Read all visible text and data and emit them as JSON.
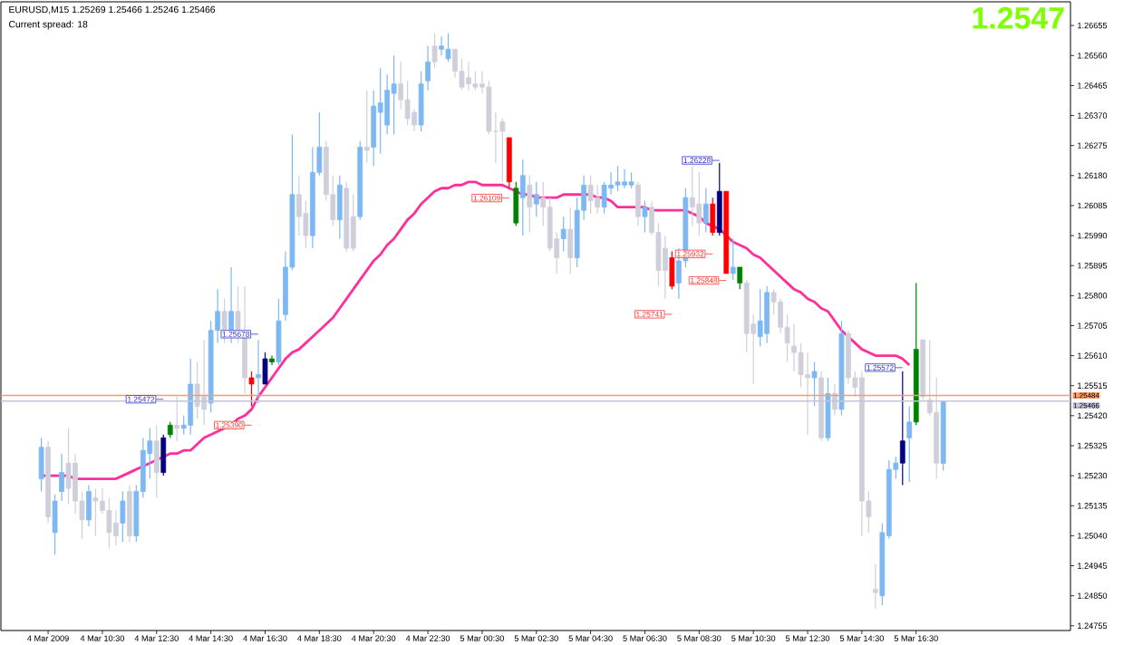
{
  "chart_data": {
    "type": "candlestick",
    "title": "EURUSD,M15 1.25269 1.25466 1.25246 1.25466",
    "subtitle": "Current spread: 18",
    "categories": [
      null,
      "4 Mar 2009",
      null,
      null,
      null,
      null,
      null,
      null,
      null,
      "4 Mar 10:30",
      null,
      null,
      null,
      null,
      null,
      null,
      null,
      "4 Mar 12:30",
      null,
      null,
      null,
      null,
      null,
      null,
      null,
      "4 Mar 14:30",
      null,
      null,
      null,
      null,
      null,
      null,
      null,
      "4 Mar 16:30",
      null,
      null,
      null,
      null,
      null,
      null,
      null,
      "4 Mar 18:30",
      null,
      null,
      null,
      null,
      null,
      null,
      null,
      "4 Mar 20:30",
      null,
      null,
      null,
      null,
      null,
      null,
      null,
      "4 Mar 22:30",
      null,
      null,
      null,
      null,
      null,
      null,
      null,
      "5 Mar 00:30",
      null,
      null,
      null,
      null,
      null,
      null,
      null,
      "5 Mar 02:30",
      null,
      null,
      null,
      null,
      null,
      null,
      null,
      "5 Mar 04:30",
      null,
      null,
      null,
      null,
      null,
      null,
      null,
      "5 Mar 06:30",
      null,
      null,
      null,
      null,
      null,
      null,
      null,
      "5 Mar 08:30",
      null,
      null,
      null,
      null,
      null,
      null,
      null,
      "5 Mar 10:30",
      null,
      null,
      null,
      null,
      null,
      null,
      null,
      "5 Mar 12:30",
      null,
      null,
      null,
      null,
      null,
      null,
      null,
      "5 Mar 14:30",
      null,
      null,
      null,
      null,
      null,
      null,
      null,
      "5 Mar 16:30",
      null,
      null,
      null,
      null
    ],
    "ohlc": [
      [
        1.2522,
        1.2535,
        1.2518,
        1.2532
      ],
      [
        1.2532,
        1.2534,
        1.2508,
        1.251
      ],
      [
        1.2505,
        1.2517,
        1.2498,
        1.2515
      ],
      [
        1.2518,
        1.253,
        1.2515,
        1.2524
      ],
      [
        1.2527,
        1.2538,
        1.2514,
        1.2519
      ],
      [
        1.2527,
        1.253,
        1.2511,
        1.2515
      ],
      [
        1.2515,
        1.2518,
        1.2503,
        1.2509
      ],
      [
        1.2509,
        1.252,
        1.2507,
        1.2518
      ],
      [
        1.2516,
        1.2519,
        1.2504,
        1.2515
      ],
      [
        1.2515,
        1.2519,
        1.2511,
        1.2512
      ],
      [
        1.2512,
        1.2516,
        1.25,
        1.2505
      ],
      [
        1.2508,
        1.2512,
        1.2501,
        1.2504
      ],
      [
        1.2508,
        1.2518,
        1.2502,
        1.2515
      ],
      [
        1.2518,
        1.252,
        1.2502,
        1.2504
      ],
      [
        1.2504,
        1.252,
        1.2502,
        1.2518
      ],
      [
        1.2518,
        1.2535,
        1.2516,
        1.2531
      ],
      [
        1.253,
        1.2538,
        1.2522,
        1.2534
      ],
      [
        1.2534,
        1.2539,
        1.2516,
        1.2524
      ],
      [
        1.2524,
        1.2536,
        1.2523,
        1.2535
      ],
      [
        1.2536,
        1.254,
        1.2535,
        1.2539
      ],
      [
        1.2539,
        1.2548,
        1.2534,
        1.2538
      ],
      [
        1.2538,
        1.2542,
        1.2536,
        1.2539
      ],
      [
        1.2539,
        1.256,
        1.2536,
        1.2552
      ],
      [
        1.2552,
        1.2559,
        1.2541,
        1.2545
      ],
      [
        1.2548,
        1.2566,
        1.2539,
        1.2544
      ],
      [
        1.2546,
        1.2572,
        1.2543,
        1.2569
      ],
      [
        1.2569,
        1.2582,
        1.2565,
        1.2575
      ],
      [
        1.2575,
        1.2579,
        1.2565,
        1.2569
      ],
      [
        1.2569,
        1.2589,
        1.2565,
        1.2575
      ],
      [
        1.2575,
        1.2583,
        1.2565,
        1.2569
      ],
      [
        1.2568,
        1.2583,
        1.2549,
        1.2554
      ],
      [
        1.2554,
        1.2556,
        1.2545,
        1.2552
      ],
      [
        1.2554,
        1.2566,
        1.2546,
        1.2555
      ],
      [
        1.2552,
        1.2562,
        1.2552,
        1.256
      ],
      [
        1.2559,
        1.2561,
        1.2558,
        1.256
      ],
      [
        1.2559,
        1.2579,
        1.2558,
        1.2572
      ],
      [
        1.2574,
        1.2594,
        1.2572,
        1.2589
      ],
      [
        1.2589,
        1.2631,
        1.2588,
        1.2612
      ],
      [
        1.2612,
        1.2618,
        1.2599,
        1.2605
      ],
      [
        1.2606,
        1.261,
        1.2595,
        1.2599
      ],
      [
        1.2599,
        1.2627,
        1.2595,
        1.2619
      ],
      [
        1.2619,
        1.2638,
        1.2618,
        1.2627
      ],
      [
        1.2627,
        1.2629,
        1.261,
        1.2612
      ],
      [
        1.2612,
        1.2618,
        1.2602,
        1.2604
      ],
      [
        1.2604,
        1.2618,
        1.2598,
        1.2615
      ],
      [
        1.2614,
        1.2616,
        1.2594,
        1.2595
      ],
      [
        1.2605,
        1.2612,
        1.2594,
        1.2595
      ],
      [
        1.2605,
        1.2629,
        1.2604,
        1.2627
      ],
      [
        1.2627,
        1.2645,
        1.2622,
        1.2626
      ],
      [
        1.2627,
        1.2645,
        1.2621,
        1.264
      ],
      [
        1.2638,
        1.2652,
        1.2625,
        1.2641
      ],
      [
        1.2634,
        1.265,
        1.2631,
        1.2645
      ],
      [
        1.2644,
        1.2656,
        1.2631,
        1.2647
      ],
      [
        1.2647,
        1.2654,
        1.2639,
        1.2642
      ],
      [
        1.2642,
        1.2648,
        1.2634,
        1.2636
      ],
      [
        1.2638,
        1.2639,
        1.2632,
        1.2634
      ],
      [
        1.2634,
        1.2651,
        1.2632,
        1.2647
      ],
      [
        1.2648,
        1.2659,
        1.2645,
        1.2654
      ],
      [
        1.2659,
        1.2663,
        1.2652,
        1.2654
      ],
      [
        1.2658,
        1.2662,
        1.2656,
        1.2659
      ],
      [
        1.2655,
        1.2663,
        1.2654,
        1.2658
      ],
      [
        1.2658,
        1.2658,
        1.2649,
        1.2651
      ],
      [
        1.2651,
        1.2655,
        1.2645,
        1.2646
      ],
      [
        1.2649,
        1.2654,
        1.2645,
        1.2647
      ],
      [
        1.2647,
        1.2651,
        1.2645,
        1.2646
      ],
      [
        1.2647,
        1.2651,
        1.2644,
        1.2646
      ],
      [
        1.2646,
        1.2648,
        1.2631,
        1.2632
      ],
      [
        1.2632,
        1.2638,
        1.2622,
        1.2632
      ],
      [
        1.2635,
        1.2636,
        1.2616,
        1.2632
      ],
      [
        1.263,
        1.263,
        1.2614,
        1.2616
      ],
      [
        1.2603,
        1.2616,
        1.2602,
        1.2614
      ],
      [
        1.2611,
        1.2623,
        1.2599,
        1.2618
      ],
      [
        1.2615,
        1.2618,
        1.26,
        1.2608
      ],
      [
        1.2609,
        1.2616,
        1.2605,
        1.2612
      ],
      [
        1.2611,
        1.2616,
        1.2602,
        1.2608
      ],
      [
        1.2608,
        1.2611,
        1.2594,
        1.2595
      ],
      [
        1.2598,
        1.26,
        1.2587,
        1.2592
      ],
      [
        1.2598,
        1.2605,
        1.2594,
        1.2601
      ],
      [
        1.2601,
        1.2608,
        1.2587,
        1.2592
      ],
      [
        1.2592,
        1.2611,
        1.2589,
        1.2607
      ],
      [
        1.2607,
        1.2618,
        1.2604,
        1.2615
      ],
      [
        1.2615,
        1.2618,
        1.2606,
        1.261
      ],
      [
        1.2611,
        1.2615,
        1.2606,
        1.2608
      ],
      [
        1.2608,
        1.2616,
        1.2606,
        1.2615
      ],
      [
        1.2614,
        1.2619,
        1.2612,
        1.2615
      ],
      [
        1.2615,
        1.2621,
        1.2613,
        1.2616
      ],
      [
        1.2615,
        1.262,
        1.2614,
        1.2616
      ],
      [
        1.2615,
        1.2619,
        1.2614,
        1.2616
      ],
      [
        1.2615,
        1.2616,
        1.2602,
        1.2605
      ],
      [
        1.2605,
        1.261,
        1.26,
        1.2608
      ],
      [
        1.2608,
        1.261,
        1.2599,
        1.26
      ],
      [
        1.26,
        1.2603,
        1.2583,
        1.2588
      ],
      [
        1.2595,
        1.2599,
        1.2579,
        1.2588
      ],
      [
        1.2592,
        1.2594,
        1.2582,
        1.2583
      ],
      [
        1.2584,
        1.2595,
        1.2579,
        1.2591
      ],
      [
        1.2591,
        1.2614,
        1.2589,
        1.2611
      ],
      [
        1.2611,
        1.2621,
        1.2602,
        1.2608
      ],
      [
        1.2609,
        1.2619,
        1.2599,
        1.2603
      ],
      [
        1.2603,
        1.2614,
        1.26,
        1.2609
      ],
      [
        1.2609,
        1.2611,
        1.2599,
        1.26
      ],
      [
        1.26,
        1.2622,
        1.2599,
        1.2613
      ],
      [
        1.2613,
        1.2613,
        1.2587,
        1.2587
      ],
      [
        1.2587,
        1.2598,
        1.2585,
        1.2589
      ],
      [
        1.2589,
        1.2589,
        1.2582,
        1.2584
      ],
      [
        1.2584,
        1.2585,
        1.2562,
        1.2568
      ],
      [
        1.2571,
        1.2574,
        1.2552,
        1.2568
      ],
      [
        1.2567,
        1.2582,
        1.2564,
        1.2572
      ],
      [
        1.2568,
        1.2583,
        1.2565,
        1.2581
      ],
      [
        1.2581,
        1.2582,
        1.2574,
        1.2578
      ],
      [
        1.2578,
        1.2579,
        1.2568,
        1.257
      ],
      [
        1.257,
        1.2574,
        1.2559,
        1.2565
      ],
      [
        1.2564,
        1.2571,
        1.2556,
        1.2562
      ],
      [
        1.2562,
        1.2565,
        1.2551,
        1.2555
      ],
      [
        1.2555,
        1.2562,
        1.2536,
        1.2554
      ],
      [
        1.2554,
        1.2559,
        1.2545,
        1.2556
      ],
      [
        1.2554,
        1.2556,
        1.2534,
        1.2535
      ],
      [
        1.2535,
        1.2554,
        1.2534,
        1.2549
      ],
      [
        1.2549,
        1.2552,
        1.2542,
        1.2544
      ],
      [
        1.2544,
        1.2572,
        1.2542,
        1.2568
      ],
      [
        1.2568,
        1.2569,
        1.2552,
        1.2554
      ],
      [
        1.2554,
        1.2556,
        1.2548,
        1.2551
      ],
      [
        1.2554,
        1.2556,
        1.2504,
        1.2515
      ],
      [
        1.2515,
        1.2518,
        1.2505,
        1.251
      ],
      [
        1.2487,
        1.2495,
        1.2481,
        1.2486
      ],
      [
        1.2485,
        1.2508,
        1.2482,
        1.2505
      ],
      [
        1.2504,
        1.2528,
        1.2503,
        1.2525
      ],
      [
        1.2525,
        1.2529,
        1.2522,
        1.2527
      ],
      [
        1.2527,
        1.2556,
        1.252,
        1.2534
      ],
      [
        1.2535,
        1.2545,
        1.2521,
        1.254
      ],
      [
        1.254,
        1.2584,
        1.2539,
        1.2563
      ],
      [
        1.2566,
        1.2566,
        1.2547,
        1.2548
      ],
      [
        1.2547,
        1.2566,
        1.2542,
        1.2543
      ],
      [
        1.2543,
        1.2554,
        1.2522,
        1.2527
      ],
      [
        1.25269,
        1.25466,
        1.25246,
        1.25466
      ]
    ],
    "colors": [
      "#7db8f2",
      "#cfcfdb",
      "#7db8f2",
      "#7db8f2",
      "#cfcfdb",
      "#cfcfdb",
      "#cfcfdb",
      "#7db8f2",
      "#cfcfdb",
      "#cfcfdb",
      "#cfcfdb",
      "#cfcfdb",
      "#7db8f2",
      "#cfcfdb",
      "#7db8f2",
      "#7db8f2",
      "#7db8f2",
      "#cfcfdb",
      "#000080",
      "#008000",
      "#cfcfdb",
      "#7db8f2",
      "#7db8f2",
      "#cfcfdb",
      "#cfcfdb",
      "#7db8f2",
      "#7db8f2",
      "#cfcfdb",
      "#7db8f2",
      "#cfcfdb",
      "#cfcfdb",
      "#ff0000",
      "#7db8f2",
      "#000080",
      "#008000",
      "#7db8f2",
      "#7db8f2",
      "#7db8f2",
      "#cfcfdb",
      "#cfcfdb",
      "#7db8f2",
      "#7db8f2",
      "#cfcfdb",
      "#cfcfdb",
      "#7db8f2",
      "#cfcfdb",
      "#cfcfdb",
      "#7db8f2",
      "#cfcfdb",
      "#7db8f2",
      "#7db8f2",
      "#7db8f2",
      "#7db8f2",
      "#cfcfdb",
      "#cfcfdb",
      "#cfcfdb",
      "#7db8f2",
      "#7db8f2",
      "#cfcfdb",
      "#7db8f2",
      "#7db8f2",
      "#cfcfdb",
      "#cfcfdb",
      "#cfcfdb",
      "#cfcfdb",
      "#cfcfdb",
      "#cfcfdb",
      "#cfcfdb",
      "#cfcfdb",
      "#ff0000",
      "#008000",
      "#7db8f2",
      "#cfcfdb",
      "#7db8f2",
      "#cfcfdb",
      "#cfcfdb",
      "#cfcfdb",
      "#7db8f2",
      "#cfcfdb",
      "#7db8f2",
      "#7db8f2",
      "#cfcfdb",
      "#cfcfdb",
      "#7db8f2",
      "#7db8f2",
      "#7db8f2",
      "#7db8f2",
      "#7db8f2",
      "#cfcfdb",
      "#7db8f2",
      "#cfcfdb",
      "#cfcfdb",
      "#cfcfdb",
      "#ff0000",
      "#7db8f2",
      "#7db8f2",
      "#cfcfdb",
      "#cfcfdb",
      "#7db8f2",
      "#ff0000",
      "#000080",
      "#ff0000",
      "#7db8f2",
      "#008000",
      "#cfcfdb",
      "#cfcfdb",
      "#7db8f2",
      "#7db8f2",
      "#cfcfdb",
      "#cfcfdb",
      "#cfcfdb",
      "#cfcfdb",
      "#cfcfdb",
      "#cfcfdb",
      "#7db8f2",
      "#cfcfdb",
      "#7db8f2",
      "#cfcfdb",
      "#7db8f2",
      "#cfcfdb",
      "#cfcfdb",
      "#cfcfdb",
      "#cfcfdb",
      "#cfcfdb",
      "#7db8f2",
      "#7db8f2",
      "#7db8f2",
      "#000080",
      "#7db8f2",
      "#008000",
      "#cfcfdb",
      "#cfcfdb",
      "#cfcfdb",
      "#7db8f2"
    ],
    "series": [
      {
        "type": "line",
        "color": "#ff2e9a",
        "values": [
          1.2523,
          1.2523,
          1.2523,
          1.2523,
          1.2523,
          1.2522,
          1.2522,
          1.2522,
          1.2522,
          1.2522,
          1.2522,
          1.2522,
          1.2523,
          1.2524,
          1.2525,
          1.2526,
          1.2527,
          1.2528,
          1.2529,
          1.253,
          1.253,
          1.2531,
          1.2531,
          1.2533,
          1.2535,
          1.2536,
          1.2537,
          1.2538,
          1.2539,
          1.2541,
          1.2542,
          1.2544,
          1.2548,
          1.2551,
          1.2554,
          1.2557,
          1.256,
          1.2562,
          1.2563,
          1.2565,
          1.2567,
          1.2569,
          1.2571,
          1.2573,
          1.2576,
          1.2579,
          1.2582,
          1.2585,
          1.2588,
          1.2591,
          1.2593,
          1.2596,
          1.2598,
          1.2601,
          1.2604,
          1.2606,
          1.2609,
          1.2611,
          1.2613,
          1.2614,
          1.2614,
          1.2615,
          1.2615,
          1.2616,
          1.2616,
          1.2615,
          1.2615,
          1.2615,
          1.2615,
          1.2614,
          1.2613,
          1.2612,
          1.2612,
          1.2611,
          1.2611,
          1.2611,
          1.2611,
          1.2612,
          1.2612,
          1.2612,
          1.2612,
          1.2612,
          1.2611,
          1.2611,
          1.261,
          1.2608,
          1.2608,
          1.2608,
          1.2608,
          1.2608,
          1.2607,
          1.2607,
          1.2607,
          1.2607,
          1.2607,
          1.2607,
          1.2606,
          1.2605,
          1.2603,
          1.2602,
          1.2601,
          1.2599,
          1.2597,
          1.2596,
          1.2595,
          1.2593,
          1.2592,
          1.259,
          1.2588,
          1.2586,
          1.2584,
          1.2582,
          1.2581,
          1.2579,
          1.2578,
          1.2576,
          1.2575,
          1.2572,
          1.2569,
          1.2567,
          1.2565,
          1.2563,
          1.2562,
          1.2561,
          1.2561,
          1.2561,
          1.2561,
          1.256,
          1.2558,
          null,
          null,
          null,
          null,
          null
        ]
      }
    ],
    "annotations": [
      "1.2547",
      {
        "text": "1.25472",
        "y": 1.25472
      },
      {
        "text": "1.25678",
        "y": 1.25678
      },
      {
        "text": "1.25390",
        "y": 1.2539
      },
      "1.26109",
      {
        "text": "1.26228",
        "y": 1.26228
      },
      {
        "text": "1.25932",
        "y": 1.25932
      },
      "1.25848",
      "1.25741",
      "1.25572"
    ],
    "ref_lines": [
      {
        "axis": "y",
        "value": 1.25484,
        "label": "1.25484",
        "color": "#ff9a66"
      },
      {
        "axis": "y",
        "value": 1.25466,
        "label": "1.25466",
        "color": "#c4c4dc"
      }
    ],
    "ylim": [
      1.2474,
      1.2673
    ],
    "yticks": [
      {
        "value": 1.26655,
        "label": "1.26655"
      },
      {
        "value": 1.2656,
        "label": "1.26560"
      },
      {
        "value": 1.26465,
        "label": "1.26465"
      },
      {
        "value": 1.2637,
        "label": "1.26370"
      },
      {
        "value": 1.26275,
        "label": "1.26275"
      },
      {
        "value": 1.2618,
        "label": "1.26180"
      },
      {
        "value": 1.26085,
        "label": "1.26085"
      },
      {
        "value": 1.2599,
        "label": "1.25990"
      },
      {
        "value": 1.25895,
        "label": "1.25895"
      },
      {
        "value": 1.258,
        "label": "1.25800"
      },
      {
        "value": 1.25705,
        "label": "1.25705"
      },
      {
        "value": 1.2561,
        "label": "1.25610"
      },
      {
        "value": 1.25515,
        "label": "1.25515"
      },
      {
        "value": 1.2542,
        "label": "1.25420"
      },
      {
        "value": 1.25325,
        "label": "1.25325"
      },
      {
        "value": 1.2523,
        "label": "1.25230"
      },
      {
        "value": 1.25135,
        "label": "1.25135"
      },
      {
        "value": 1.2504,
        "label": "1.25040"
      },
      {
        "value": 1.24945,
        "label": "1.24945"
      },
      {
        "value": 1.2485,
        "label": "1.24850"
      },
      {
        "value": 1.24755,
        "label": "1.24755"
      }
    ]
  }
}
